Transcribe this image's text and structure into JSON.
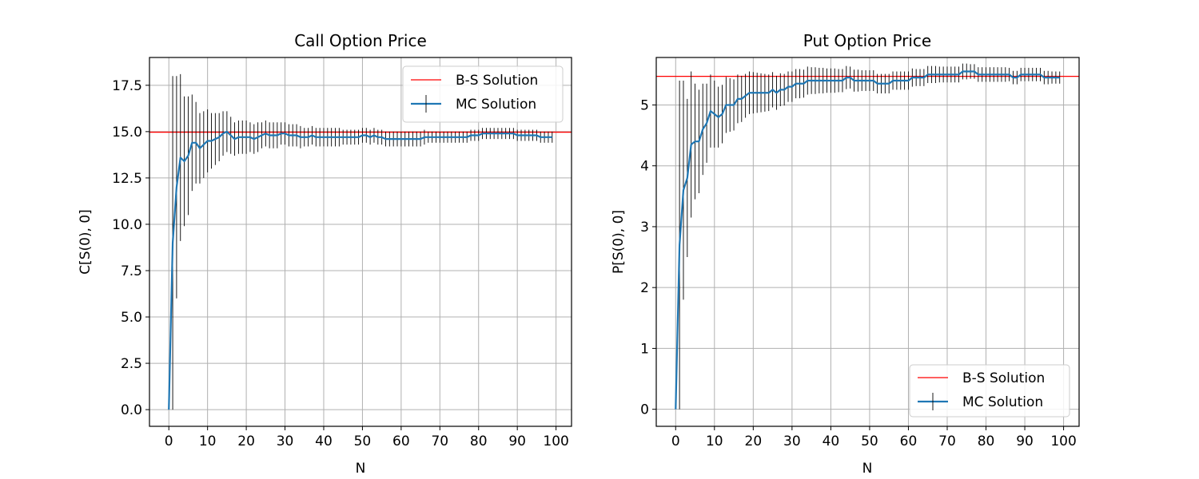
{
  "chart_data": [
    {
      "type": "line",
      "title": "Call Option Price",
      "xlabel": "N",
      "ylabel": "C[S(0), 0]",
      "xlim": [
        -5,
        104
      ],
      "ylim": [
        -0.9,
        19
      ],
      "xticks": [
        0,
        10,
        20,
        30,
        40,
        50,
        60,
        70,
        80,
        90,
        100
      ],
      "yticks": [
        0.0,
        2.5,
        5.0,
        7.5,
        10.0,
        12.5,
        15.0,
        17.5
      ],
      "ytick_labels": [
        "0.0",
        "2.5",
        "5.0",
        "7.5",
        "10.0",
        "12.5",
        "15.0",
        "17.5"
      ],
      "grid": true,
      "legend_position": "top-right",
      "reference_line": {
        "name": "B-S Solution",
        "value": 14.97,
        "color": "#ff0000"
      },
      "series": [
        {
          "name": "MC Solution",
          "color": "#1f77b4",
          "errorbar_color": "#000000",
          "x": [
            0,
            1,
            2,
            3,
            4,
            5,
            6,
            7,
            8,
            9,
            10,
            11,
            12,
            13,
            14,
            15,
            16,
            17,
            18,
            19,
            20,
            21,
            22,
            23,
            24,
            25,
            26,
            27,
            28,
            29,
            30,
            31,
            32,
            33,
            34,
            35,
            36,
            37,
            38,
            39,
            40,
            41,
            42,
            43,
            44,
            45,
            46,
            47,
            48,
            49,
            50,
            51,
            52,
            53,
            54,
            55,
            56,
            57,
            58,
            59,
            60,
            61,
            62,
            63,
            64,
            65,
            66,
            67,
            68,
            69,
            70,
            71,
            72,
            73,
            74,
            75,
            76,
            77,
            78,
            79,
            80,
            81,
            82,
            83,
            84,
            85,
            86,
            87,
            88,
            89,
            90,
            91,
            92,
            93,
            94,
            95,
            96,
            97,
            98,
            99
          ],
          "y": [
            0.0,
            9.0,
            12.0,
            13.6,
            13.4,
            13.7,
            14.4,
            14.4,
            14.1,
            14.3,
            14.5,
            14.5,
            14.6,
            14.7,
            14.9,
            15.0,
            14.8,
            14.6,
            14.7,
            14.7,
            14.7,
            14.7,
            14.6,
            14.7,
            14.8,
            14.9,
            14.8,
            14.8,
            14.8,
            14.9,
            14.9,
            14.8,
            14.8,
            14.8,
            14.7,
            14.7,
            14.7,
            14.8,
            14.7,
            14.7,
            14.7,
            14.7,
            14.7,
            14.7,
            14.7,
            14.7,
            14.7,
            14.7,
            14.7,
            14.7,
            14.8,
            14.8,
            14.7,
            14.8,
            14.7,
            14.7,
            14.6,
            14.6,
            14.6,
            14.6,
            14.6,
            14.6,
            14.6,
            14.6,
            14.6,
            14.6,
            14.7,
            14.7,
            14.7,
            14.7,
            14.7,
            14.7,
            14.7,
            14.7,
            14.7,
            14.7,
            14.7,
            14.7,
            14.8,
            14.8,
            14.8,
            14.9,
            14.9,
            14.9,
            14.9,
            14.9,
            14.9,
            14.9,
            14.9,
            14.9,
            14.8,
            14.8,
            14.8,
            14.8,
            14.8,
            14.8,
            14.7,
            14.7,
            14.7,
            14.7
          ],
          "err": [
            0.0,
            9.0,
            6.0,
            4.5,
            3.5,
            3.2,
            2.6,
            2.2,
            1.9,
            1.8,
            1.7,
            1.5,
            1.4,
            1.3,
            1.2,
            1.1,
            1.0,
            0.9,
            0.9,
            0.9,
            0.9,
            0.8,
            0.8,
            0.8,
            0.7,
            0.7,
            0.7,
            0.7,
            0.7,
            0.6,
            0.6,
            0.6,
            0.6,
            0.6,
            0.6,
            0.5,
            0.5,
            0.5,
            0.5,
            0.5,
            0.5,
            0.5,
            0.5,
            0.5,
            0.5,
            0.4,
            0.4,
            0.4,
            0.4,
            0.4,
            0.4,
            0.4,
            0.4,
            0.4,
            0.4,
            0.4,
            0.4,
            0.4,
            0.4,
            0.4,
            0.4,
            0.4,
            0.4,
            0.4,
            0.4,
            0.4,
            0.4,
            0.3,
            0.3,
            0.3,
            0.3,
            0.3,
            0.3,
            0.3,
            0.3,
            0.3,
            0.3,
            0.3,
            0.3,
            0.3,
            0.3,
            0.3,
            0.3,
            0.3,
            0.3,
            0.3,
            0.3,
            0.3,
            0.3,
            0.3,
            0.3,
            0.3,
            0.3,
            0.3,
            0.3,
            0.3,
            0.3,
            0.3,
            0.3,
            0.3
          ]
        }
      ]
    },
    {
      "type": "line",
      "title": "Put Option Price",
      "xlabel": "N",
      "ylabel": "P[S(0), 0]",
      "xlim": [
        -5,
        104
      ],
      "ylim": [
        -0.28,
        5.78
      ],
      "xticks": [
        0,
        10,
        20,
        30,
        40,
        50,
        60,
        70,
        80,
        90,
        100
      ],
      "yticks": [
        0,
        1,
        2,
        3,
        4,
        5
      ],
      "ytick_labels": [
        "0",
        "1",
        "2",
        "3",
        "4",
        "5"
      ],
      "grid": true,
      "legend_position": "bottom-right",
      "reference_line": {
        "name": "B-S Solution",
        "value": 5.47,
        "color": "#ff0000"
      },
      "series": [
        {
          "name": "MC Solution",
          "color": "#1f77b4",
          "errorbar_color": "#000000",
          "x": [
            0,
            1,
            2,
            3,
            4,
            5,
            6,
            7,
            8,
            9,
            10,
            11,
            12,
            13,
            14,
            15,
            16,
            17,
            18,
            19,
            20,
            21,
            22,
            23,
            24,
            25,
            26,
            27,
            28,
            29,
            30,
            31,
            32,
            33,
            34,
            35,
            36,
            37,
            38,
            39,
            40,
            41,
            42,
            43,
            44,
            45,
            46,
            47,
            48,
            49,
            50,
            51,
            52,
            53,
            54,
            55,
            56,
            57,
            58,
            59,
            60,
            61,
            62,
            63,
            64,
            65,
            66,
            67,
            68,
            69,
            70,
            71,
            72,
            73,
            74,
            75,
            76,
            77,
            78,
            79,
            80,
            81,
            82,
            83,
            84,
            85,
            86,
            87,
            88,
            89,
            90,
            91,
            92,
            93,
            94,
            95,
            96,
            97,
            98,
            99
          ],
          "y": [
            0.0,
            2.7,
            3.6,
            3.8,
            4.35,
            4.4,
            4.4,
            4.6,
            4.7,
            4.9,
            4.85,
            4.8,
            4.85,
            5.0,
            5.0,
            5.0,
            5.1,
            5.1,
            5.15,
            5.2,
            5.2,
            5.2,
            5.2,
            5.2,
            5.2,
            5.25,
            5.2,
            5.25,
            5.25,
            5.3,
            5.3,
            5.35,
            5.35,
            5.35,
            5.4,
            5.4,
            5.4,
            5.4,
            5.4,
            5.4,
            5.4,
            5.4,
            5.4,
            5.4,
            5.45,
            5.45,
            5.4,
            5.4,
            5.4,
            5.4,
            5.4,
            5.4,
            5.35,
            5.35,
            5.35,
            5.35,
            5.4,
            5.4,
            5.4,
            5.4,
            5.4,
            5.45,
            5.45,
            5.45,
            5.45,
            5.5,
            5.5,
            5.5,
            5.5,
            5.5,
            5.5,
            5.5,
            5.5,
            5.5,
            5.55,
            5.55,
            5.55,
            5.55,
            5.5,
            5.5,
            5.5,
            5.5,
            5.5,
            5.5,
            5.5,
            5.5,
            5.5,
            5.45,
            5.45,
            5.5,
            5.5,
            5.5,
            5.5,
            5.5,
            5.5,
            5.45,
            5.45,
            5.45,
            5.45,
            5.45
          ],
          "err": [
            0.0,
            2.7,
            1.8,
            1.3,
            1.2,
            0.95,
            0.85,
            0.75,
            0.65,
            0.6,
            0.55,
            0.5,
            0.48,
            0.46,
            0.44,
            0.42,
            0.4,
            0.38,
            0.36,
            0.35,
            0.34,
            0.33,
            0.32,
            0.31,
            0.3,
            0.29,
            0.28,
            0.27,
            0.26,
            0.25,
            0.25,
            0.24,
            0.24,
            0.23,
            0.23,
            0.22,
            0.22,
            0.21,
            0.21,
            0.2,
            0.2,
            0.2,
            0.19,
            0.19,
            0.19,
            0.18,
            0.18,
            0.18,
            0.17,
            0.17,
            0.17,
            0.17,
            0.16,
            0.16,
            0.16,
            0.16,
            0.15,
            0.15,
            0.15,
            0.15,
            0.15,
            0.15,
            0.14,
            0.14,
            0.14,
            0.14,
            0.14,
            0.14,
            0.13,
            0.13,
            0.13,
            0.13,
            0.13,
            0.13,
            0.13,
            0.13,
            0.12,
            0.12,
            0.12,
            0.12,
            0.12,
            0.12,
            0.12,
            0.12,
            0.12,
            0.12,
            0.11,
            0.11,
            0.11,
            0.11,
            0.11,
            0.11,
            0.11,
            0.11,
            0.11,
            0.11,
            0.11,
            0.1,
            0.1,
            0.1
          ]
        }
      ]
    }
  ]
}
